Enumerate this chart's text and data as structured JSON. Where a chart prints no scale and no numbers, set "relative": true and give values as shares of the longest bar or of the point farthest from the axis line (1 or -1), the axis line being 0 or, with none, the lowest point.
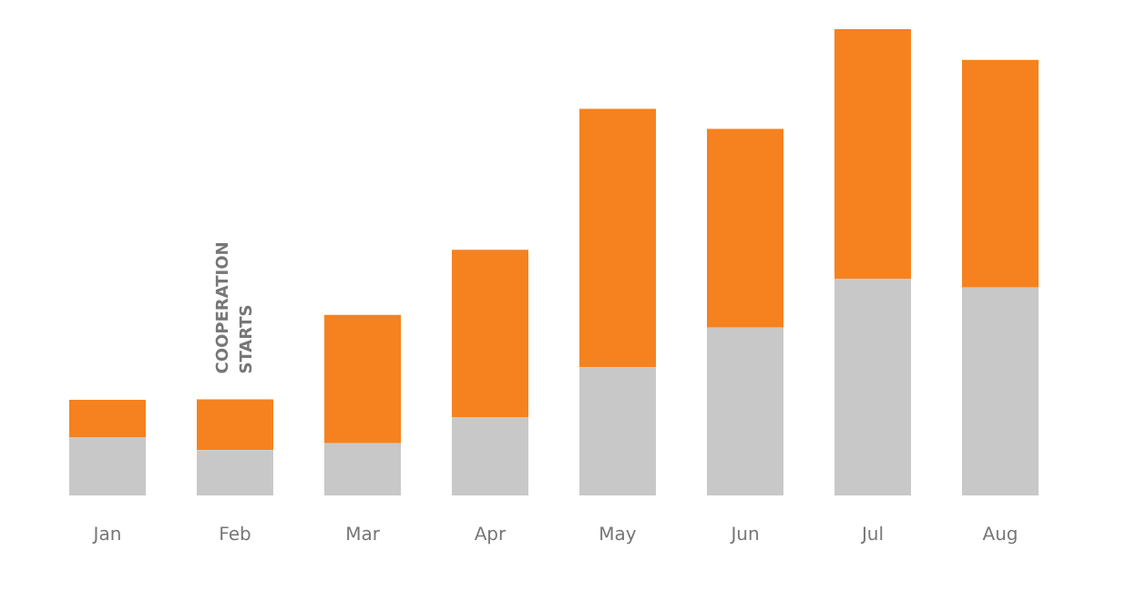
{
  "chart_data": {
    "type": "bar",
    "stacked": true,
    "relative": true,
    "grid": false,
    "legend": false,
    "categories": [
      "Jan",
      "Feb",
      "Mar",
      "Apr",
      "May",
      "Jun",
      "Jul",
      "Aug"
    ],
    "series": [
      {
        "color": "#c8c8c8",
        "values": [
          0.124,
          0.097,
          0.112,
          0.167,
          0.275,
          0.36,
          0.465,
          0.446
        ]
      },
      {
        "color": "#f5821f",
        "values": [
          0.081,
          0.109,
          0.275,
          0.36,
          0.554,
          0.426,
          0.535,
          0.488
        ]
      }
    ],
    "annotations": [
      "COOPERATION STARTS"
    ]
  }
}
